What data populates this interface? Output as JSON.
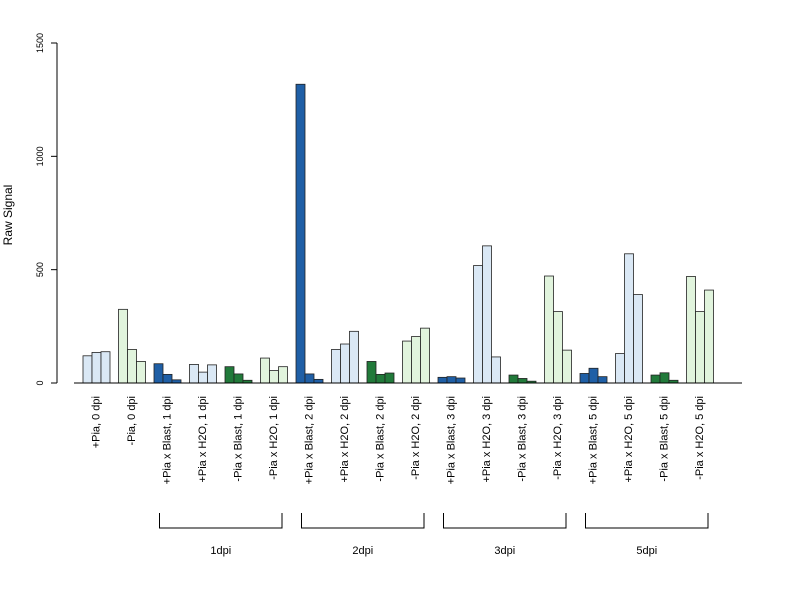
{
  "chart_data": {
    "type": "bar",
    "title": "",
    "xlabel": "",
    "ylabel": "Raw Signal",
    "ylim": [
      0,
      1500
    ],
    "yticks": [
      0,
      500,
      1000,
      1500
    ],
    "grid": false,
    "legend": "none",
    "categories": [
      "+Pia, 0 dpi",
      "-Pia, 0 dpi",
      "+Pia x Blast, 1 dpi",
      "+Pia x H2O, 1 dpi",
      "-Pia x Blast, 1 dpi",
      "-Pia x H2O, 1 dpi",
      "+Pia x Blast, 2 dpi",
      "+Pia x H2O, 2 dpi",
      "-Pia x Blast, 2 dpi",
      "-Pia x H2O, 2 dpi",
      "+Pia x Blast, 3 dpi",
      "+Pia x H2O, 3 dpi",
      "-Pia x Blast, 3 dpi",
      "-Pia x H2O, 3 dpi",
      "+Pia x Blast, 5 dpi",
      "+Pia x H2O, 5 dpi",
      "-Pia x Blast, 5 dpi",
      "-Pia x H2O, 5 dpi"
    ],
    "bar_colors": [
      "#dae8f5",
      "#e1f4dd",
      "#1f5fa6",
      "#dae8f5",
      "#217a3a",
      "#e1f4dd",
      "#1f5fa6",
      "#dae8f5",
      "#217a3a",
      "#e1f4dd",
      "#1f5fa6",
      "#dae8f5",
      "#217a3a",
      "#e1f4dd",
      "#1f5fa6",
      "#dae8f5",
      "#217a3a",
      "#e1f4dd"
    ],
    "values": [
      [
        120,
        135,
        138
      ],
      [
        325,
        148,
        95
      ],
      [
        85,
        38,
        14
      ],
      [
        82,
        48,
        80
      ],
      [
        72,
        40,
        12
      ],
      [
        110,
        55,
        72
      ],
      [
        1318,
        40,
        16
      ],
      [
        148,
        172,
        228
      ],
      [
        95,
        38,
        44
      ],
      [
        185,
        205,
        242
      ],
      [
        25,
        28,
        22
      ],
      [
        518,
        605,
        115
      ],
      [
        35,
        20,
        8
      ],
      [
        472,
        315,
        145
      ],
      [
        42,
        65,
        28
      ],
      [
        130,
        570,
        390
      ],
      [
        35,
        45,
        12
      ],
      [
        470,
        315,
        410
      ]
    ],
    "groups": [
      {
        "label": "1dpi",
        "from": 2,
        "to": 5
      },
      {
        "label": "2dpi",
        "from": 6,
        "to": 9
      },
      {
        "label": "3dpi",
        "from": 10,
        "to": 13
      },
      {
        "label": "5dpi",
        "from": 14,
        "to": 17
      }
    ]
  }
}
